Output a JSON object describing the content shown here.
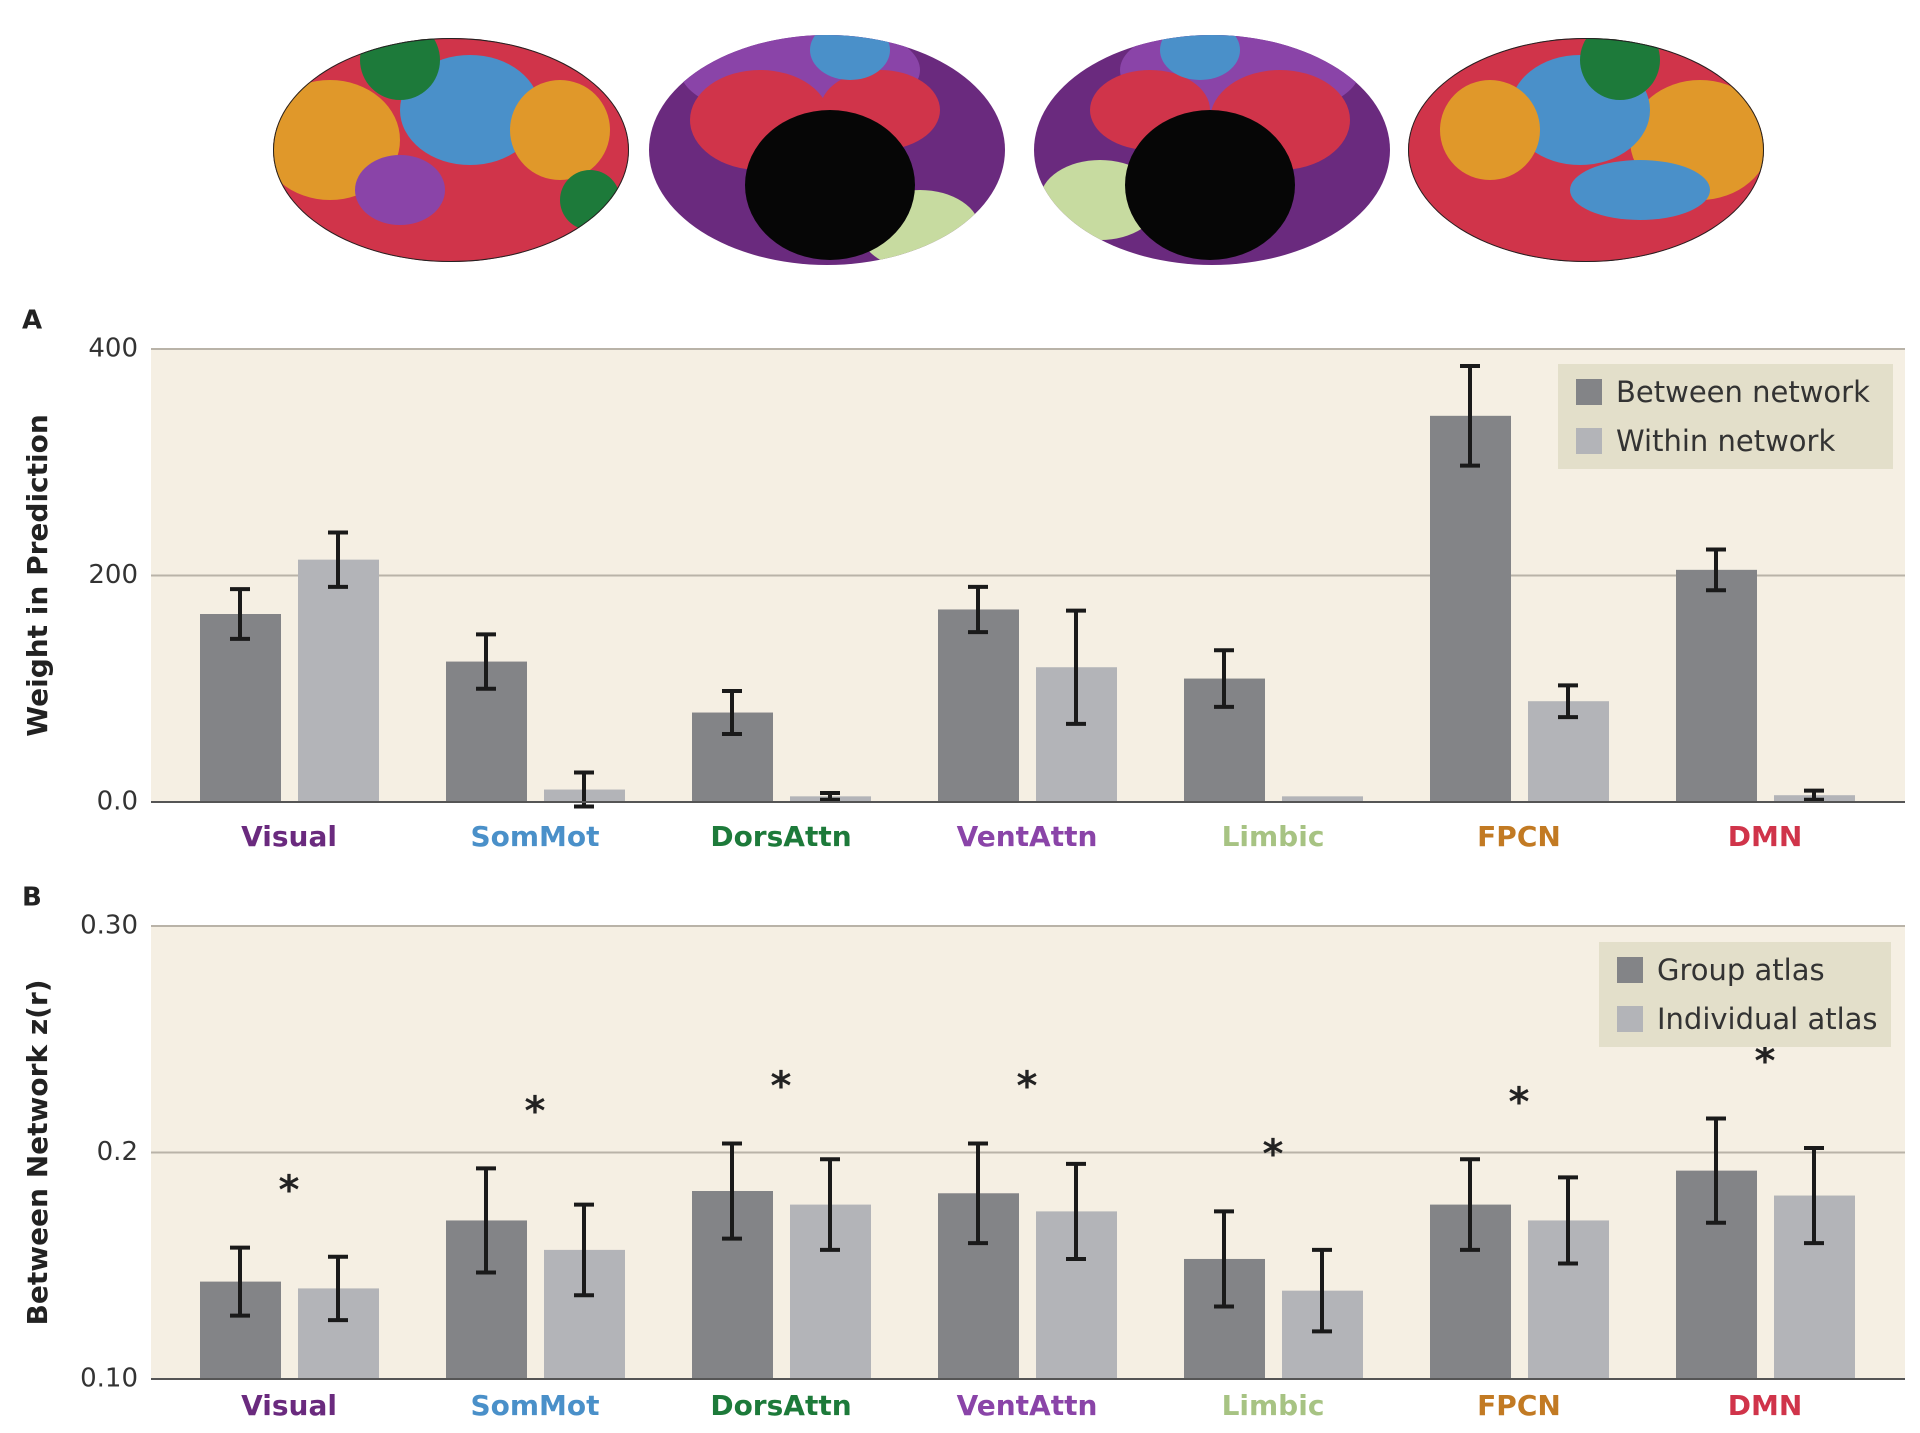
{
  "chart_data": [
    {
      "type": "bar",
      "panel_label": "A",
      "y_label": "Weight in Prediction",
      "categories": [
        "Visual",
        "SomMot",
        "DorsAttn",
        "VentAttn",
        "Limbic",
        "FPCN",
        "DMN"
      ],
      "category_colors": [
        "#6a2a7e",
        "#4a90c9",
        "#1d7a3a",
        "#8a44a8",
        "#a7c383",
        "#c27a23",
        "#d0344a"
      ],
      "series": [
        {
          "name": "Between network",
          "color": "#838487",
          "values": [
            166,
            124,
            79,
            170,
            109,
            341,
            205
          ],
          "errors": [
            22,
            24,
            19,
            20,
            25,
            44,
            18
          ]
        },
        {
          "name": "Within network",
          "color": "#b3b4b8",
          "values": [
            214,
            11,
            5,
            119,
            5,
            89,
            6
          ],
          "errors": [
            24,
            15,
            3,
            50,
            null,
            14,
            4
          ]
        }
      ],
      "ylim": [
        0,
        400
      ],
      "yticks": [
        {
          "value": 0,
          "label": "0.0"
        },
        200,
        400
      ],
      "grid": true,
      "legend": "upper right"
    },
    {
      "type": "bar",
      "panel_label": "B",
      "y_label": "Between Network z(r)",
      "categories": [
        "Visual",
        "SomMot",
        "DorsAttn",
        "VentAttn",
        "Limbic",
        "FPCN",
        "DMN"
      ],
      "category_colors": [
        "#6a2a7e",
        "#4a90c9",
        "#1d7a3a",
        "#8a44a8",
        "#a7c383",
        "#c27a23",
        "#d0344a"
      ],
      "series": [
        {
          "name": "Group atlas",
          "color": "#838487",
          "values": [
            0.143,
            0.17,
            0.183,
            0.182,
            0.153,
            0.177,
            0.192
          ],
          "errors": [
            0.015,
            0.023,
            0.021,
            0.022,
            0.021,
            0.02,
            0.023
          ]
        },
        {
          "name": "Individual atlas",
          "color": "#b3b4b8",
          "values": [
            0.14,
            0.157,
            0.177,
            0.174,
            0.139,
            0.17,
            0.181
          ],
          "errors": [
            0.014,
            0.02,
            0.02,
            0.021,
            0.018,
            0.019,
            0.021
          ]
        }
      ],
      "significance": [
        "*",
        "*",
        "*",
        "*",
        "*",
        "*",
        "*"
      ],
      "ylim": [
        0.1,
        0.3
      ],
      "yticks": [
        {
          "value": 0.1,
          "label": "0.10"
        },
        0.2,
        {
          "value": 0.3,
          "label": "0.30"
        }
      ],
      "grid": true,
      "legend": "upper right"
    }
  ]
}
